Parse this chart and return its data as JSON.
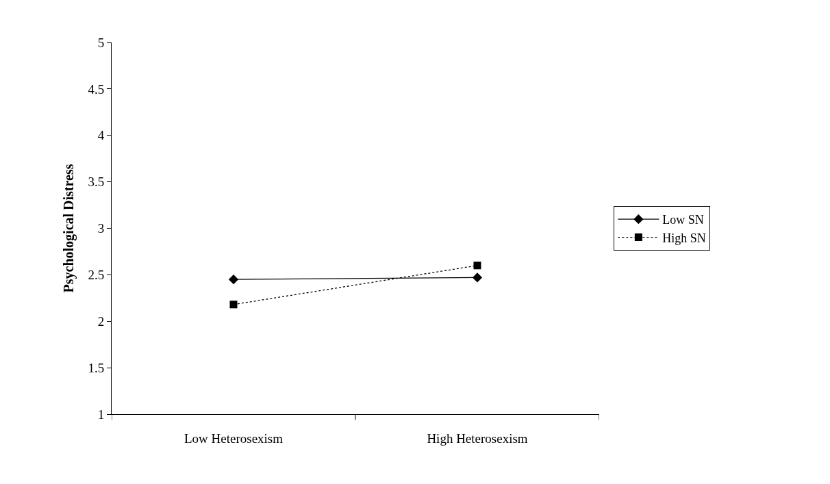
{
  "chart_data": {
    "type": "line",
    "ylabel": "Psychological Distress",
    "categories": [
      "Low Heterosexism",
      "High Heterosexism"
    ],
    "series": [
      {
        "name": "Low SN",
        "color": "#000000",
        "values": [
          2.45,
          2.47
        ],
        "marker": "diamond",
        "line_style": "solid"
      },
      {
        "name": "High SN",
        "color": "#000000",
        "values": [
          2.18,
          2.6
        ],
        "marker": "square",
        "line_style": "dotted"
      }
    ],
    "ylim": [
      1,
      5
    ],
    "yticks": [
      1,
      1.5,
      2,
      2.5,
      3,
      3.5,
      4,
      4.5,
      5
    ],
    "legend": "right"
  }
}
